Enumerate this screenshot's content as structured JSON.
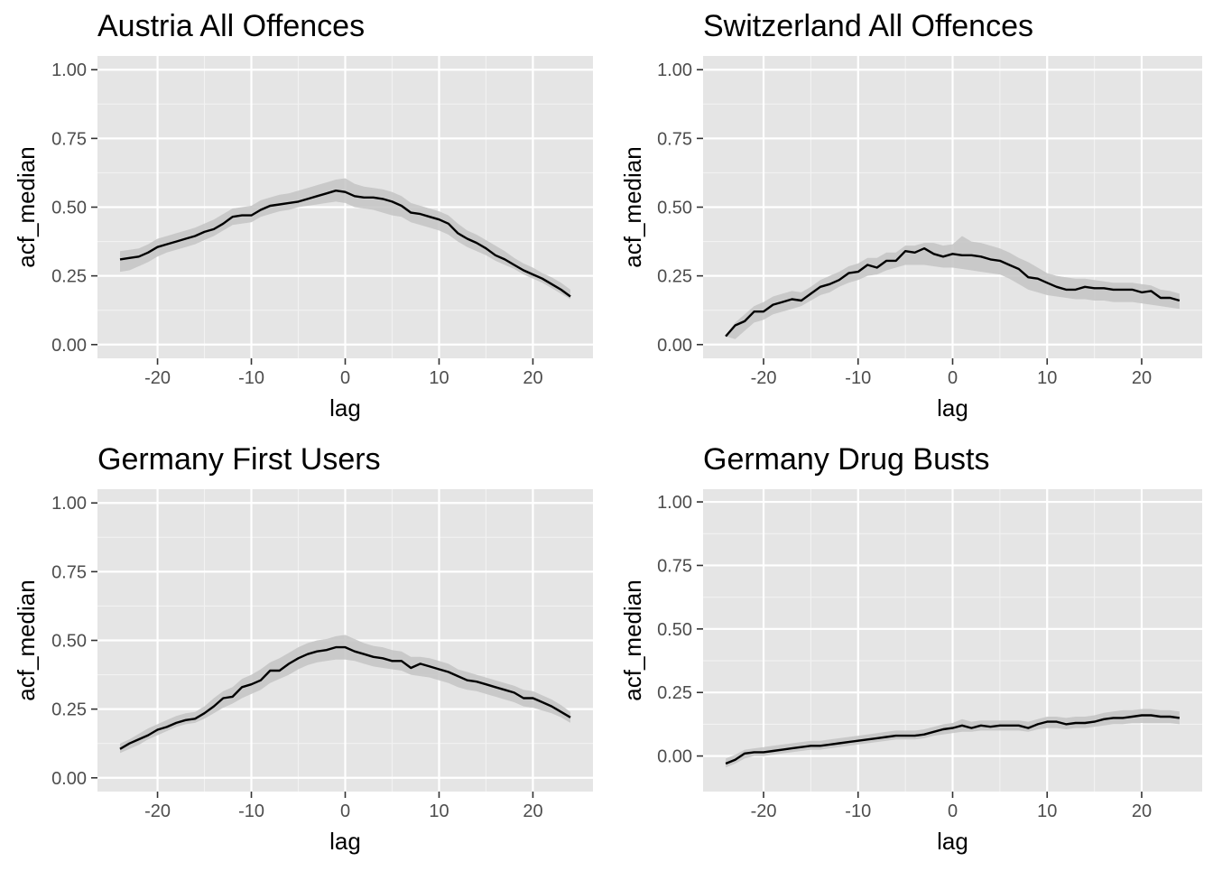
{
  "style": {
    "panel_background": "#e5e5e5",
    "grid_major": "#ffffff",
    "grid_minor": "#f2f2f2",
    "ribbon": "#c4c4c4",
    "line": "#000000",
    "tick_text": "#4d4d4d"
  },
  "chart_data": [
    {
      "type": "line",
      "title": "Austria All Offences",
      "xlabel": "lag",
      "ylabel": "acf_median",
      "xlim": [
        -26.4,
        26.4
      ],
      "ylim": [
        -0.05,
        1.05
      ],
      "x_ticks": [
        -20,
        -10,
        0,
        10,
        20
      ],
      "x_tick_labels": [
        "-20",
        "-10",
        "0",
        "10",
        "20"
      ],
      "y_ticks": [
        0,
        0.25,
        0.5,
        0.75,
        1
      ],
      "y_tick_labels": [
        "0.00",
        "0.25",
        "0.50",
        "0.75",
        "1.00"
      ],
      "ribbon": true,
      "grid": true,
      "x": [
        -24,
        -23,
        -22,
        -21,
        -20,
        -19,
        -18,
        -17,
        -16,
        -15,
        -14,
        -13,
        -12,
        -11,
        -10,
        -9,
        -8,
        -7,
        -6,
        -5,
        -4,
        -3,
        -2,
        -1,
        0,
        1,
        2,
        3,
        4,
        5,
        6,
        7,
        8,
        9,
        10,
        11,
        12,
        13,
        14,
        15,
        16,
        17,
        18,
        19,
        20,
        21,
        22,
        23,
        24
      ],
      "series": [
        {
          "values": [
            0.31,
            0.315,
            0.32,
            0.335,
            0.355,
            0.365,
            0.375,
            0.385,
            0.395,
            0.41,
            0.42,
            0.44,
            0.465,
            0.47,
            0.47,
            0.49,
            0.505,
            0.51,
            0.515,
            0.52,
            0.53,
            0.54,
            0.55,
            0.56,
            0.555,
            0.54,
            0.535,
            0.535,
            0.53,
            0.52,
            0.505,
            0.48,
            0.475,
            0.465,
            0.455,
            0.44,
            0.405,
            0.385,
            0.37,
            0.35,
            0.325,
            0.31,
            0.29,
            0.27,
            0.255,
            0.24,
            0.22,
            0.2,
            0.175
          ],
          "lower": [
            0.265,
            0.27,
            0.285,
            0.3,
            0.32,
            0.335,
            0.345,
            0.355,
            0.365,
            0.38,
            0.395,
            0.415,
            0.435,
            0.44,
            0.445,
            0.465,
            0.475,
            0.485,
            0.49,
            0.5,
            0.505,
            0.51,
            0.515,
            0.52,
            0.515,
            0.5,
            0.495,
            0.49,
            0.48,
            0.47,
            0.465,
            0.445,
            0.435,
            0.425,
            0.415,
            0.4,
            0.375,
            0.355,
            0.34,
            0.325,
            0.305,
            0.29,
            0.275,
            0.255,
            0.24,
            0.225,
            0.205,
            0.185,
            0.165
          ],
          "upper": [
            0.34,
            0.345,
            0.35,
            0.365,
            0.385,
            0.395,
            0.405,
            0.415,
            0.425,
            0.44,
            0.455,
            0.475,
            0.495,
            0.5,
            0.505,
            0.525,
            0.535,
            0.545,
            0.55,
            0.56,
            0.57,
            0.58,
            0.59,
            0.6,
            0.605,
            0.585,
            0.575,
            0.57,
            0.565,
            0.555,
            0.54,
            0.515,
            0.505,
            0.495,
            0.485,
            0.47,
            0.44,
            0.415,
            0.4,
            0.38,
            0.36,
            0.34,
            0.315,
            0.295,
            0.28,
            0.26,
            0.245,
            0.225,
            0.2
          ]
        }
      ]
    },
    {
      "type": "line",
      "title": "Switzerland All Offences",
      "xlabel": "lag",
      "ylabel": "acf_median",
      "xlim": [
        -26.4,
        26.4
      ],
      "ylim": [
        -0.05,
        1.05
      ],
      "x_ticks": [
        -20,
        -10,
        0,
        10,
        20
      ],
      "x_tick_labels": [
        "-20",
        "-10",
        "0",
        "10",
        "20"
      ],
      "y_ticks": [
        0,
        0.25,
        0.5,
        0.75,
        1
      ],
      "y_tick_labels": [
        "0.00",
        "0.25",
        "0.50",
        "0.75",
        "1.00"
      ],
      "ribbon": true,
      "grid": true,
      "x": [
        -24,
        -23,
        -22,
        -21,
        -20,
        -19,
        -18,
        -17,
        -16,
        -15,
        -14,
        -13,
        -12,
        -11,
        -10,
        -9,
        -8,
        -7,
        -6,
        -5,
        -4,
        -3,
        -2,
        -1,
        0,
        1,
        2,
        3,
        4,
        5,
        6,
        7,
        8,
        9,
        10,
        11,
        12,
        13,
        14,
        15,
        16,
        17,
        18,
        19,
        20,
        21,
        22,
        23,
        24
      ],
      "series": [
        {
          "values": [
            0.03,
            0.07,
            0.085,
            0.12,
            0.12,
            0.145,
            0.155,
            0.165,
            0.16,
            0.185,
            0.21,
            0.22,
            0.235,
            0.26,
            0.265,
            0.29,
            0.28,
            0.305,
            0.305,
            0.34,
            0.335,
            0.35,
            0.33,
            0.32,
            0.33,
            0.325,
            0.325,
            0.32,
            0.31,
            0.305,
            0.29,
            0.275,
            0.245,
            0.24,
            0.225,
            0.21,
            0.2,
            0.2,
            0.21,
            0.205,
            0.205,
            0.2,
            0.2,
            0.2,
            0.19,
            0.195,
            0.17,
            0.17,
            0.16
          ],
          "lower": [
            0.03,
            0.02,
            0.05,
            0.08,
            0.09,
            0.11,
            0.12,
            0.13,
            0.14,
            0.16,
            0.18,
            0.19,
            0.21,
            0.225,
            0.235,
            0.25,
            0.255,
            0.27,
            0.28,
            0.29,
            0.29,
            0.29,
            0.285,
            0.28,
            0.28,
            0.275,
            0.27,
            0.265,
            0.26,
            0.255,
            0.24,
            0.22,
            0.2,
            0.19,
            0.18,
            0.175,
            0.17,
            0.165,
            0.165,
            0.16,
            0.16,
            0.155,
            0.155,
            0.155,
            0.15,
            0.145,
            0.14,
            0.135,
            0.13
          ],
          "upper": [
            0.035,
            0.08,
            0.11,
            0.14,
            0.155,
            0.175,
            0.185,
            0.195,
            0.19,
            0.21,
            0.235,
            0.25,
            0.265,
            0.285,
            0.295,
            0.315,
            0.315,
            0.335,
            0.335,
            0.36,
            0.36,
            0.37,
            0.37,
            0.36,
            0.365,
            0.395,
            0.375,
            0.37,
            0.36,
            0.35,
            0.335,
            0.315,
            0.3,
            0.28,
            0.26,
            0.25,
            0.245,
            0.24,
            0.24,
            0.235,
            0.23,
            0.225,
            0.225,
            0.225,
            0.22,
            0.215,
            0.2,
            0.195,
            0.185
          ]
        }
      ]
    },
    {
      "type": "line",
      "title": "Germany First Users",
      "xlabel": "lag",
      "ylabel": "acf_median",
      "xlim": [
        -26.4,
        26.4
      ],
      "ylim": [
        -0.05,
        1.05
      ],
      "x_ticks": [
        -20,
        -10,
        0,
        10,
        20
      ],
      "x_tick_labels": [
        "-20",
        "-10",
        "0",
        "10",
        "20"
      ],
      "y_ticks": [
        0,
        0.25,
        0.5,
        0.75,
        1
      ],
      "y_tick_labels": [
        "0.00",
        "0.25",
        "0.50",
        "0.75",
        "1.00"
      ],
      "ribbon": true,
      "grid": true,
      "x": [
        -24,
        -23,
        -22,
        -21,
        -20,
        -19,
        -18,
        -17,
        -16,
        -15,
        -14,
        -13,
        -12,
        -11,
        -10,
        -9,
        -8,
        -7,
        -6,
        -5,
        -4,
        -3,
        -2,
        -1,
        0,
        1,
        2,
        3,
        4,
        5,
        6,
        7,
        8,
        9,
        10,
        11,
        12,
        13,
        14,
        15,
        16,
        17,
        18,
        19,
        20,
        21,
        22,
        23,
        24
      ],
      "series": [
        {
          "values": [
            0.105,
            0.125,
            0.14,
            0.155,
            0.175,
            0.185,
            0.2,
            0.21,
            0.215,
            0.235,
            0.26,
            0.29,
            0.295,
            0.33,
            0.34,
            0.355,
            0.39,
            0.39,
            0.415,
            0.435,
            0.45,
            0.46,
            0.465,
            0.475,
            0.475,
            0.46,
            0.45,
            0.44,
            0.435,
            0.425,
            0.425,
            0.4,
            0.415,
            0.405,
            0.395,
            0.385,
            0.37,
            0.355,
            0.35,
            0.34,
            0.33,
            0.32,
            0.31,
            0.29,
            0.29,
            0.275,
            0.26,
            0.24,
            0.22
          ],
          "lower": [
            0.09,
            0.105,
            0.12,
            0.14,
            0.155,
            0.17,
            0.185,
            0.195,
            0.2,
            0.215,
            0.235,
            0.255,
            0.27,
            0.29,
            0.305,
            0.32,
            0.345,
            0.36,
            0.375,
            0.395,
            0.41,
            0.42,
            0.425,
            0.43,
            0.43,
            0.425,
            0.415,
            0.405,
            0.4,
            0.395,
            0.39,
            0.375,
            0.37,
            0.365,
            0.355,
            0.345,
            0.33,
            0.32,
            0.315,
            0.305,
            0.295,
            0.285,
            0.275,
            0.26,
            0.255,
            0.245,
            0.235,
            0.22,
            0.2
          ],
          "upper": [
            0.125,
            0.14,
            0.16,
            0.18,
            0.195,
            0.21,
            0.225,
            0.235,
            0.24,
            0.26,
            0.29,
            0.315,
            0.33,
            0.36,
            0.375,
            0.395,
            0.42,
            0.435,
            0.455,
            0.475,
            0.49,
            0.5,
            0.505,
            0.515,
            0.52,
            0.505,
            0.49,
            0.48,
            0.475,
            0.465,
            0.46,
            0.44,
            0.44,
            0.435,
            0.425,
            0.415,
            0.395,
            0.385,
            0.375,
            0.365,
            0.355,
            0.345,
            0.335,
            0.32,
            0.315,
            0.3,
            0.285,
            0.265,
            0.24
          ]
        }
      ]
    },
    {
      "type": "line",
      "title": "Germany Drug Busts",
      "xlabel": "lag",
      "ylabel": "acf_median",
      "xlim": [
        -26.4,
        26.4
      ],
      "ylim": [
        -0.14,
        1.05
      ],
      "x_ticks": [
        -20,
        -10,
        0,
        10,
        20
      ],
      "x_tick_labels": [
        "-20",
        "-10",
        "0",
        "10",
        "20"
      ],
      "y_ticks": [
        0,
        0.25,
        0.5,
        0.75,
        1
      ],
      "y_tick_labels": [
        "0.00",
        "0.25",
        "0.50",
        "0.75",
        "1.00"
      ],
      "ribbon": true,
      "grid": true,
      "x": [
        -24,
        -23,
        -22,
        -21,
        -20,
        -19,
        -18,
        -17,
        -16,
        -15,
        -14,
        -13,
        -12,
        -11,
        -10,
        -9,
        -8,
        -7,
        -6,
        -5,
        -4,
        -3,
        -2,
        -1,
        0,
        1,
        2,
        3,
        4,
        5,
        6,
        7,
        8,
        9,
        10,
        11,
        12,
        13,
        14,
        15,
        16,
        17,
        18,
        19,
        20,
        21,
        22,
        23,
        24
      ],
      "series": [
        {
          "values": [
            -0.03,
            -0.015,
            0.01,
            0.015,
            0.015,
            0.02,
            0.025,
            0.03,
            0.035,
            0.04,
            0.04,
            0.045,
            0.05,
            0.055,
            0.06,
            0.065,
            0.07,
            0.075,
            0.08,
            0.08,
            0.08,
            0.085,
            0.095,
            0.105,
            0.11,
            0.12,
            0.11,
            0.12,
            0.115,
            0.12,
            0.12,
            0.12,
            0.11,
            0.125,
            0.135,
            0.135,
            0.125,
            0.13,
            0.13,
            0.135,
            0.145,
            0.15,
            0.15,
            0.155,
            0.16,
            0.16,
            0.155,
            0.155,
            0.15
          ],
          "lower": [
            -0.045,
            -0.03,
            -0.01,
            0.0,
            0.0,
            0.005,
            0.01,
            0.015,
            0.02,
            0.025,
            0.025,
            0.03,
            0.035,
            0.04,
            0.045,
            0.05,
            0.055,
            0.06,
            0.065,
            0.065,
            0.065,
            0.07,
            0.08,
            0.085,
            0.09,
            0.095,
            0.095,
            0.1,
            0.1,
            0.1,
            0.1,
            0.1,
            0.095,
            0.105,
            0.11,
            0.11,
            0.105,
            0.11,
            0.11,
            0.115,
            0.12,
            0.125,
            0.125,
            0.13,
            0.13,
            0.13,
            0.13,
            0.13,
            0.125
          ],
          "upper": [
            -0.01,
            0.005,
            0.025,
            0.03,
            0.035,
            0.04,
            0.045,
            0.05,
            0.055,
            0.06,
            0.06,
            0.065,
            0.07,
            0.075,
            0.08,
            0.085,
            0.09,
            0.095,
            0.1,
            0.1,
            0.1,
            0.105,
            0.115,
            0.125,
            0.13,
            0.145,
            0.135,
            0.14,
            0.14,
            0.14,
            0.14,
            0.14,
            0.135,
            0.145,
            0.155,
            0.155,
            0.15,
            0.155,
            0.155,
            0.16,
            0.17,
            0.175,
            0.18,
            0.18,
            0.185,
            0.185,
            0.18,
            0.18,
            0.175
          ]
        }
      ]
    }
  ]
}
